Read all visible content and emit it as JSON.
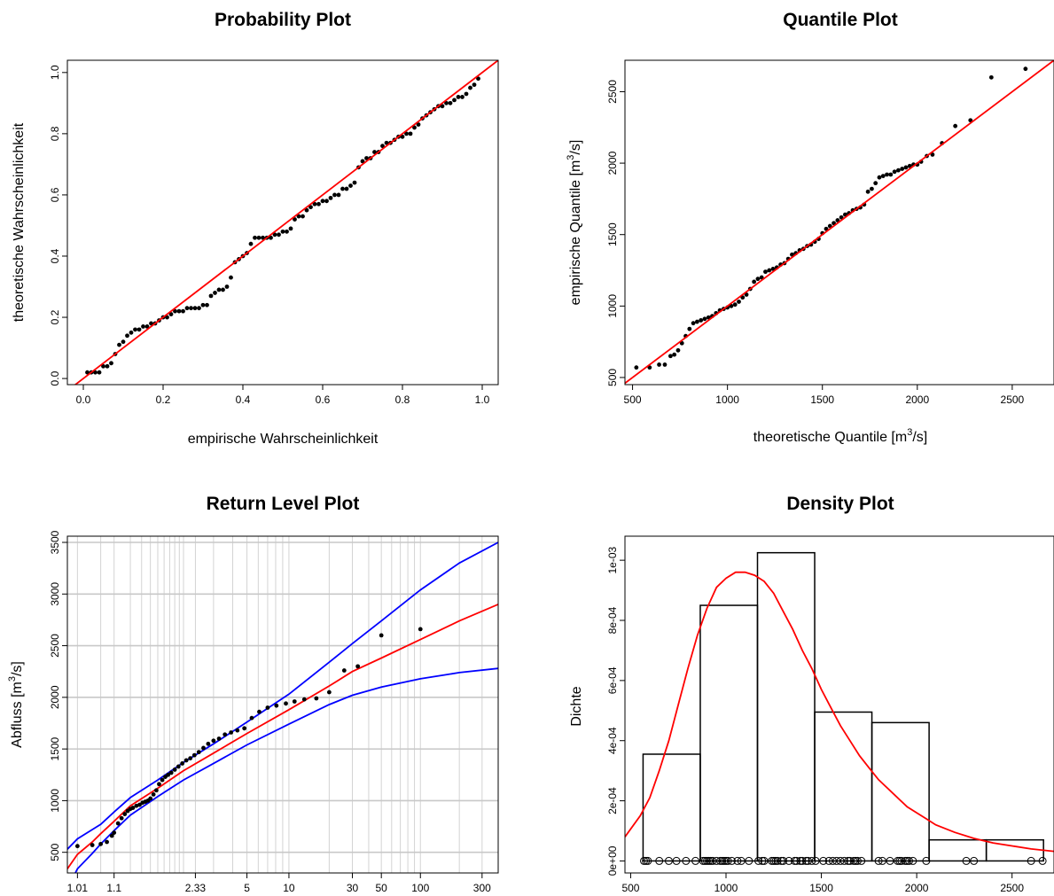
{
  "chart_data": [
    {
      "type": "scatter",
      "title": "Probability Plot",
      "xlabel": "empirische Wahrscheinlichkeit",
      "ylabel": "theoretische Wahrscheinlichkeit",
      "xlim": [
        -0.04,
        1.04
      ],
      "ylim": [
        -0.02,
        1.04
      ],
      "xticks": [
        0.0,
        0.2,
        0.4,
        0.6,
        0.8,
        1.0
      ],
      "yticks": [
        0.0,
        0.2,
        0.4,
        0.6,
        0.8,
        1.0
      ],
      "xtick_labels": [
        "0.0",
        "0.2",
        "0.4",
        "0.6",
        "0.8",
        "1.0"
      ],
      "ytick_labels": [
        "0.0",
        "0.2",
        "0.4",
        "0.6",
        "0.8",
        "1.0"
      ],
      "series": [
        {
          "kind": "points",
          "color": "#000000",
          "x": [
            0.01,
            0.02,
            0.03,
            0.04,
            0.05,
            0.06,
            0.07,
            0.08,
            0.09,
            0.1,
            0.11,
            0.12,
            0.13,
            0.14,
            0.15,
            0.16,
            0.17,
            0.18,
            0.19,
            0.2,
            0.21,
            0.22,
            0.23,
            0.24,
            0.25,
            0.26,
            0.27,
            0.28,
            0.29,
            0.3,
            0.31,
            0.32,
            0.33,
            0.34,
            0.35,
            0.36,
            0.37,
            0.38,
            0.39,
            0.4,
            0.41,
            0.42,
            0.43,
            0.44,
            0.45,
            0.46,
            0.47,
            0.48,
            0.49,
            0.5,
            0.51,
            0.52,
            0.53,
            0.54,
            0.55,
            0.56,
            0.57,
            0.58,
            0.59,
            0.6,
            0.61,
            0.62,
            0.63,
            0.64,
            0.65,
            0.66,
            0.67,
            0.68,
            0.69,
            0.7,
            0.71,
            0.72,
            0.73,
            0.74,
            0.75,
            0.76,
            0.77,
            0.78,
            0.79,
            0.8,
            0.81,
            0.82,
            0.83,
            0.84,
            0.85,
            0.86,
            0.87,
            0.88,
            0.89,
            0.9,
            0.91,
            0.92,
            0.93,
            0.94,
            0.95,
            0.96,
            0.97,
            0.98,
            0.99
          ],
          "y": [
            0.02,
            0.02,
            0.02,
            0.02,
            0.04,
            0.04,
            0.05,
            0.08,
            0.11,
            0.12,
            0.14,
            0.15,
            0.16,
            0.16,
            0.17,
            0.17,
            0.18,
            0.18,
            0.19,
            0.2,
            0.2,
            0.21,
            0.22,
            0.22,
            0.22,
            0.23,
            0.23,
            0.23,
            0.23,
            0.24,
            0.24,
            0.27,
            0.28,
            0.29,
            0.29,
            0.3,
            0.33,
            0.38,
            0.39,
            0.4,
            0.41,
            0.44,
            0.46,
            0.46,
            0.46,
            0.46,
            0.46,
            0.47,
            0.47,
            0.48,
            0.48,
            0.49,
            0.52,
            0.53,
            0.53,
            0.55,
            0.56,
            0.57,
            0.57,
            0.58,
            0.58,
            0.59,
            0.6,
            0.6,
            0.62,
            0.62,
            0.63,
            0.64,
            0.69,
            0.71,
            0.72,
            0.72,
            0.74,
            0.74,
            0.76,
            0.77,
            0.77,
            0.78,
            0.79,
            0.79,
            0.8,
            0.8,
            0.82,
            0.83,
            0.85,
            0.86,
            0.87,
            0.88,
            0.89,
            0.89,
            0.9,
            0.9,
            0.91,
            0.92,
            0.92,
            0.93,
            0.95,
            0.96,
            0.98
          ]
        },
        {
          "kind": "line",
          "color": "#ff0000",
          "x": [
            -0.04,
            1.04
          ],
          "y": [
            -0.04,
            1.04
          ]
        }
      ]
    },
    {
      "type": "scatter",
      "title": "Quantile Plot",
      "xlabel": "theoretische Quantile  [m3/s]",
      "xlabel_parts": [
        "theoretische Quantile  [m",
        "3",
        "/s]"
      ],
      "ylabel": "empirische Quantile  [m3/s]",
      "ylabel_parts": [
        "empirische Quantile  [m",
        "3",
        "/s]"
      ],
      "xlim": [
        460,
        2720
      ],
      "ylim": [
        450,
        2720
      ],
      "xticks": [
        500,
        1000,
        1500,
        2000,
        2500
      ],
      "yticks": [
        500,
        1000,
        1500,
        2000,
        2500
      ],
      "xtick_labels": [
        "500",
        "1000",
        "1500",
        "2000",
        "2500"
      ],
      "ytick_labels": [
        "500",
        "1000",
        "1500",
        "2000",
        "2500"
      ],
      "series": [
        {
          "kind": "points",
          "color": "#000000",
          "x": [
            520,
            590,
            640,
            670,
            700,
            720,
            740,
            760,
            780,
            800,
            820,
            840,
            860,
            880,
            900,
            920,
            940,
            960,
            980,
            1000,
            1020,
            1040,
            1060,
            1080,
            1100,
            1120,
            1140,
            1160,
            1180,
            1200,
            1220,
            1240,
            1260,
            1280,
            1300,
            1320,
            1340,
            1360,
            1380,
            1400,
            1420,
            1440,
            1460,
            1480,
            1500,
            1520,
            1540,
            1560,
            1580,
            1600,
            1620,
            1640,
            1660,
            1680,
            1700,
            1720,
            1740,
            1760,
            1780,
            1800,
            1820,
            1840,
            1860,
            1880,
            1900,
            1920,
            1940,
            1960,
            1980,
            2000,
            2020,
            2050,
            2080,
            2130,
            2200,
            2280,
            2390,
            2570
          ],
          "y": [
            570,
            570,
            590,
            590,
            650,
            660,
            690,
            740,
            790,
            840,
            880,
            890,
            900,
            910,
            920,
            930,
            950,
            970,
            980,
            990,
            1000,
            1010,
            1030,
            1060,
            1080,
            1120,
            1170,
            1190,
            1200,
            1240,
            1250,
            1260,
            1270,
            1290,
            1300,
            1330,
            1360,
            1370,
            1390,
            1400,
            1420,
            1430,
            1450,
            1470,
            1510,
            1540,
            1560,
            1580,
            1600,
            1620,
            1640,
            1650,
            1670,
            1680,
            1690,
            1710,
            1800,
            1820,
            1860,
            1900,
            1910,
            1920,
            1920,
            1940,
            1950,
            1960,
            1970,
            1980,
            1990,
            1990,
            2010,
            2050,
            2060,
            2140,
            2260,
            2300,
            2600,
            2660
          ]
        },
        {
          "kind": "line",
          "color": "#ff0000",
          "x": [
            460,
            2720
          ],
          "y": [
            460,
            2720
          ]
        }
      ]
    },
    {
      "type": "line",
      "title": "Return Level Plot",
      "xlabel": "",
      "ylabel": "Abfluss  [m3/s]",
      "ylabel_parts": [
        "Abfluss  [m",
        "3",
        "/s]"
      ],
      "x_scale": "gumbel return period",
      "xlim": [
        1.004,
        400
      ],
      "ylim": [
        300,
        3560
      ],
      "xticks": [
        1.01,
        1.1,
        2.33,
        5,
        10,
        30,
        50,
        100,
        300
      ],
      "xtick_labels": [
        "1.01",
        "1.1",
        "2.33",
        "5",
        "10",
        "30",
        "50",
        "100",
        "300"
      ],
      "yticks": [
        500,
        1000,
        1500,
        2000,
        2500,
        3000,
        3500
      ],
      "ytick_labels": [
        "500",
        "1000",
        "1500",
        "2000",
        "2500",
        "3000",
        "3500"
      ],
      "grid": true,
      "series": [
        {
          "kind": "line",
          "color": "#ff0000",
          "x": [
            1.004,
            1.01,
            1.03,
            1.05,
            1.1,
            1.2,
            1.5,
            2,
            3,
            5,
            10,
            20,
            30,
            50,
            100,
            200,
            400
          ],
          "y": [
            340,
            480,
            600,
            680,
            800,
            950,
            1120,
            1290,
            1460,
            1650,
            1880,
            2110,
            2250,
            2380,
            2560,
            2740,
            2900
          ]
        },
        {
          "kind": "line",
          "color": "#0000ff",
          "x": [
            1.004,
            1.01,
            1.03,
            1.05,
            1.1,
            1.2,
            1.5,
            2,
            3,
            5,
            10,
            20,
            30,
            50,
            100,
            200,
            400
          ],
          "y": [
            530,
            630,
            720,
            770,
            890,
            1030,
            1200,
            1370,
            1550,
            1760,
            2030,
            2340,
            2520,
            2740,
            3040,
            3300,
            3500
          ]
        },
        {
          "kind": "line",
          "color": "#0000ff",
          "x": [
            1.004,
            1.01,
            1.03,
            1.05,
            1.1,
            1.2,
            1.5,
            2,
            3,
            5,
            10,
            20,
            30,
            50,
            100,
            200,
            400
          ],
          "y": [
            150,
            340,
            490,
            580,
            710,
            860,
            1040,
            1200,
            1360,
            1540,
            1740,
            1930,
            2020,
            2100,
            2180,
            2240,
            2280
          ]
        },
        {
          "kind": "points",
          "color": "#000000",
          "x": [
            1.01,
            1.03,
            1.05,
            1.07,
            1.09,
            1.1,
            1.12,
            1.14,
            1.16,
            1.18,
            1.2,
            1.22,
            1.25,
            1.28,
            1.31,
            1.34,
            1.37,
            1.4,
            1.44,
            1.48,
            1.52,
            1.57,
            1.62,
            1.67,
            1.73,
            1.8,
            1.88,
            1.97,
            2.07,
            2.18,
            2.3,
            2.44,
            2.6,
            2.78,
            3.0,
            3.25,
            3.55,
            3.9,
            4.3,
            4.8,
            5.4,
            6.1,
            7.0,
            8.1,
            9.5,
            11,
            13,
            16,
            20,
            26,
            33,
            50,
            100
          ],
          "y": [
            560,
            570,
            580,
            600,
            660,
            690,
            780,
            830,
            870,
            900,
            920,
            930,
            950,
            960,
            980,
            990,
            1000,
            1020,
            1060,
            1100,
            1160,
            1200,
            1230,
            1250,
            1270,
            1300,
            1330,
            1360,
            1390,
            1410,
            1440,
            1470,
            1510,
            1550,
            1580,
            1600,
            1640,
            1660,
            1680,
            1700,
            1800,
            1860,
            1900,
            1920,
            1940,
            1960,
            1980,
            1990,
            2050,
            2260,
            2300,
            2600,
            2660
          ]
        }
      ]
    },
    {
      "type": "bar",
      "title": "Density Plot",
      "xlabel": "",
      "ylabel": "Dichte",
      "xlim": [
        470,
        2720
      ],
      "ylim": [
        -4e-05,
        0.00108
      ],
      "xticks": [
        500,
        1000,
        1500,
        2000,
        2500
      ],
      "xtick_labels": [
        "500",
        "1000",
        "1500",
        "2000",
        "2500"
      ],
      "yticks": [
        0,
        0.0002,
        0.0004,
        0.0006,
        0.0008,
        0.001
      ],
      "ytick_labels": [
        "0e+00",
        "2e-04",
        "4e-04",
        "6e-04",
        "8e-04",
        "1e-03"
      ],
      "bins": [
        {
          "from": 565,
          "to": 865,
          "value": 0.000355
        },
        {
          "from": 865,
          "to": 1165,
          "value": 0.00085
        },
        {
          "from": 1165,
          "to": 1465,
          "value": 0.001025
        },
        {
          "from": 1465,
          "to": 1765,
          "value": 0.000495
        },
        {
          "from": 1765,
          "to": 2065,
          "value": 0.00046
        },
        {
          "from": 2065,
          "to": 2365,
          "value": 7e-05
        },
        {
          "from": 2365,
          "to": 2665,
          "value": 7e-05
        }
      ],
      "series": [
        {
          "kind": "line",
          "color": "#ff0000",
          "x": [
            470,
            550,
            600,
            650,
            700,
            750,
            800,
            850,
            900,
            950,
            1000,
            1050,
            1100,
            1150,
            1200,
            1250,
            1300,
            1350,
            1400,
            1450,
            1500,
            1550,
            1600,
            1650,
            1700,
            1750,
            1800,
            1850,
            1900,
            1950,
            2000,
            2050,
            2100,
            2200,
            2300,
            2400,
            2500,
            2600,
            2720
          ],
          "y": [
            8e-05,
            0.00015,
            0.00021,
            0.0003,
            0.0004,
            0.00052,
            0.00064,
            0.00075,
            0.00084,
            0.00091,
            0.00094,
            0.00096,
            0.00096,
            0.00095,
            0.00093,
            0.00089,
            0.00083,
            0.00077,
            0.0007,
            0.00064,
            0.00057,
            0.00051,
            0.00045,
            0.0004,
            0.00035,
            0.00031,
            0.00027,
            0.00024,
            0.00021,
            0.00018,
            0.00016,
            0.00014,
            0.00012,
            9.5e-05,
            7.5e-05,
            6e-05,
            5e-05,
            4e-05,
            3.2e-05
          ]
        },
        {
          "kind": "rug",
          "color": "#000000",
          "x": [
            570,
            580,
            590,
            650,
            700,
            740,
            790,
            840,
            880,
            890,
            900,
            910,
            920,
            930,
            950,
            970,
            980,
            990,
            1000,
            1010,
            1030,
            1060,
            1080,
            1120,
            1170,
            1190,
            1200,
            1240,
            1250,
            1260,
            1270,
            1290,
            1300,
            1330,
            1360,
            1370,
            1390,
            1400,
            1420,
            1430,
            1450,
            1470,
            1510,
            1540,
            1560,
            1580,
            1600,
            1620,
            1640,
            1650,
            1670,
            1680,
            1690,
            1710,
            1800,
            1820,
            1860,
            1900,
            1910,
            1920,
            1940,
            1950,
            1960,
            1980,
            2050,
            2260,
            2300,
            2600,
            2660
          ]
        }
      ]
    }
  ]
}
